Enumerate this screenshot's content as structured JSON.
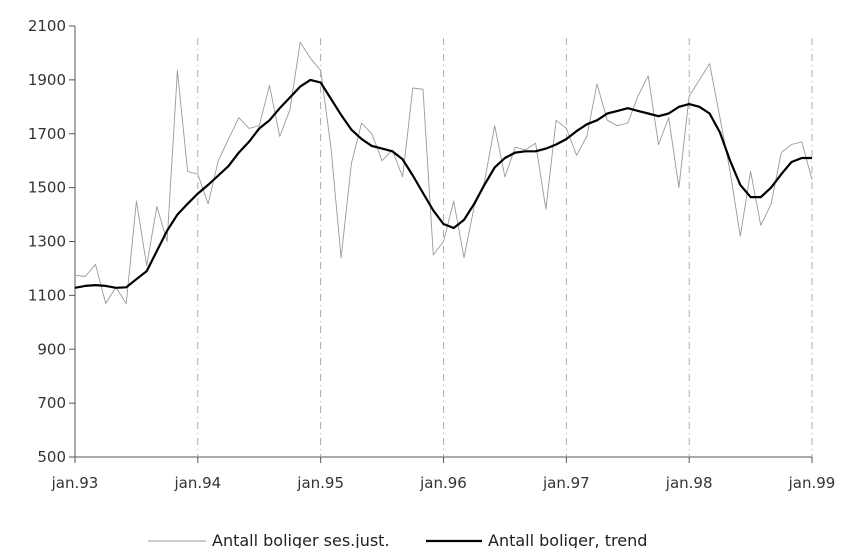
{
  "chart_data": {
    "type": "line",
    "ylim": [
      500,
      2100
    ],
    "yticks": [
      500,
      700,
      900,
      1100,
      1300,
      1500,
      1700,
      1900,
      2100
    ],
    "xticks": [
      {
        "label": "jan.93",
        "t": 0
      },
      {
        "label": "jan.94",
        "t": 12
      },
      {
        "label": "jan.95",
        "t": 24
      },
      {
        "label": "jan.96",
        "t": 36
      },
      {
        "label": "jan.97",
        "t": 48
      },
      {
        "label": "jan.98",
        "t": 60
      },
      {
        "label": "jan.99",
        "t": 72
      }
    ],
    "vertical_gridlines": "dashed at each January from jan.94 to jan.99",
    "legend_position": "bottom",
    "series": [
      {
        "name": "Antall boliger ses.just.",
        "color": "#9a9a9a",
        "values": [
          1175,
          1170,
          1215,
          1070,
          1130,
          1070,
          1450,
          1210,
          1430,
          1300,
          1935,
          1560,
          1550,
          1440,
          1600,
          1680,
          1760,
          1720,
          1730,
          1880,
          1690,
          1790,
          2040,
          1980,
          1935,
          1650,
          1240,
          1590,
          1740,
          1700,
          1600,
          1640,
          1540,
          1870,
          1865,
          1250,
          1300,
          1450,
          1240,
          1430,
          1520,
          1730,
          1540,
          1650,
          1640,
          1665,
          1420,
          1750,
          1720,
          1620,
          1690,
          1885,
          1750,
          1730,
          1740,
          1840,
          1915,
          1660,
          1760,
          1500,
          1840,
          1900,
          1960,
          1760,
          1560,
          1320,
          1560,
          1360,
          1440,
          1630,
          1660,
          1670,
          1530
        ]
      },
      {
        "name": "Antall boliger, trend",
        "color": "#000000",
        "values": [
          1128,
          1135,
          1138,
          1135,
          1128,
          1130,
          1160,
          1190,
          1265,
          1340,
          1400,
          1440,
          1478,
          1510,
          1545,
          1580,
          1630,
          1670,
          1720,
          1750,
          1795,
          1835,
          1875,
          1900,
          1890,
          1830,
          1770,
          1715,
          1680,
          1655,
          1645,
          1635,
          1605,
          1545,
          1480,
          1415,
          1365,
          1350,
          1380,
          1440,
          1510,
          1575,
          1610,
          1630,
          1635,
          1635,
          1645,
          1660,
          1680,
          1710,
          1735,
          1750,
          1775,
          1785,
          1795,
          1785,
          1775,
          1765,
          1775,
          1800,
          1810,
          1800,
          1775,
          1705,
          1600,
          1510,
          1465,
          1465,
          1500,
          1550,
          1595,
          1610,
          1610
        ]
      }
    ]
  }
}
